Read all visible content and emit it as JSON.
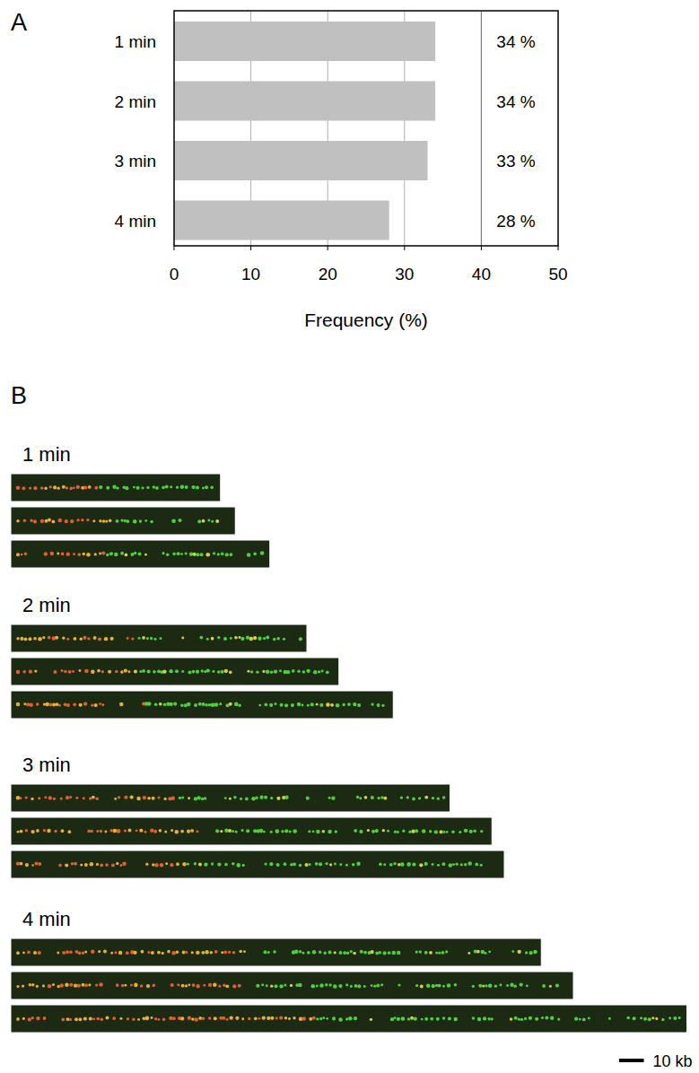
{
  "panel_labels": [
    "A",
    "B"
  ],
  "chart_data": {
    "type": "bar",
    "orientation": "horizontal",
    "categories": [
      "1 min",
      "2 min",
      "3 min",
      "4 min"
    ],
    "values": [
      34,
      34,
      33,
      28
    ],
    "value_labels": [
      "34 %",
      "34 %",
      "33 %",
      "28 %"
    ],
    "data_labels": true,
    "color": "#c0c0c0",
    "xlim": [
      0,
      50
    ],
    "xticks": [
      0,
      10,
      20,
      30,
      40,
      50
    ],
    "x_label": "Frequency (%)",
    "grid": true
  },
  "fiber_images": {
    "groups": [
      {
        "label": "1 min",
        "fibers_kb": [
          85,
          91,
          105
        ]
      },
      {
        "label": "2 min",
        "fibers_kb": [
          120,
          133,
          155
        ]
      },
      {
        "label": "3 min",
        "fibers_kb": [
          178,
          195,
          200
        ]
      },
      {
        "label": "4 min",
        "fibers_kb": [
          215,
          228,
          274
        ]
      }
    ],
    "scale_bar": {
      "value": 10,
      "label": "10 kb"
    }
  }
}
